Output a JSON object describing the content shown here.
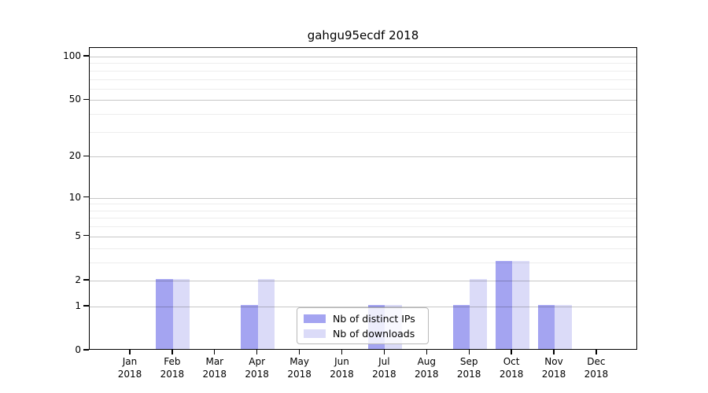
{
  "title": "gahgu95ecdf 2018",
  "chart_data": {
    "type": "bar",
    "title": "gahgu95ecdf 2018",
    "categories": [
      "Jan 2018",
      "Feb 2018",
      "Mar 2018",
      "Apr 2018",
      "May 2018",
      "Jun 2018",
      "Jul 2018",
      "Aug 2018",
      "Sep 2018",
      "Oct 2018",
      "Nov 2018",
      "Dec 2018"
    ],
    "series": [
      {
        "name": "Nb of distinct IPs",
        "color": "#a4a4f1",
        "values": [
          0,
          2,
          0,
          1,
          0,
          0,
          1,
          0,
          1,
          3,
          1,
          0
        ]
      },
      {
        "name": "Nb of downloads",
        "color": "#dbdbf8",
        "values": [
          0,
          2,
          0,
          2,
          0,
          0,
          1,
          0,
          2,
          3,
          1,
          0
        ]
      }
    ],
    "xlabel": "",
    "ylabel": "",
    "yscale": "log1p",
    "ylim": [
      0,
      115
    ],
    "yticks": [
      0,
      1,
      2,
      5,
      10,
      20,
      50,
      100
    ],
    "yticks_minor": [
      3,
      4,
      6,
      7,
      8,
      9,
      30,
      40,
      60,
      70,
      80,
      90
    ],
    "grid": "both",
    "legend_position": "inside lower center",
    "colors": {
      "spine": "#000000",
      "grid_major": "#c7c7c7",
      "grid_minor": "#ededed",
      "background": "#ffffff"
    }
  }
}
